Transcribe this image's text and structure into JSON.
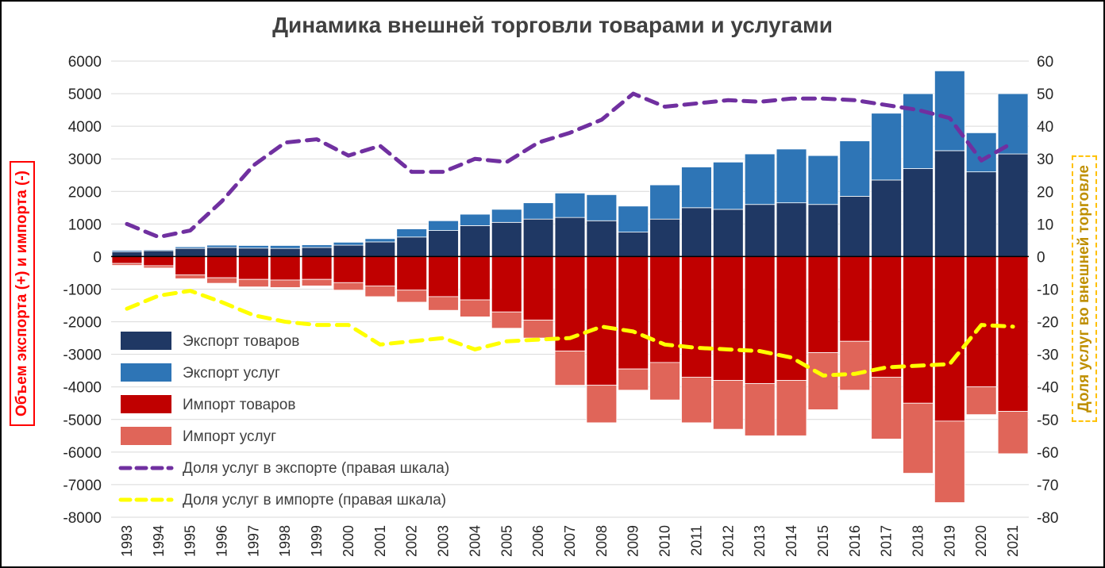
{
  "chart_data": {
    "type": "bar",
    "title": "Динамика внешней торговли товарами и услугами",
    "grid": true,
    "legend_position": "inside-left",
    "left_axis": {
      "label": "Объем экспорта (+) и импорта (-)",
      "min": -8000,
      "max": 6000,
      "step": 1000
    },
    "right_axis": {
      "label": "Доля услуг во внешней торговле",
      "min": -80,
      "max": 60,
      "step": 10
    },
    "categories": [
      "1993",
      "1994",
      "1995",
      "1996",
      "1997",
      "1998",
      "1999",
      "2000",
      "2001",
      "2002",
      "2003",
      "2004",
      "2005",
      "2006",
      "2007",
      "2008",
      "2009",
      "2010",
      "2011",
      "2012",
      "2013",
      "2014",
      "2015",
      "2016",
      "2017",
      "2018",
      "2019",
      "2020",
      "2021"
    ],
    "series": [
      {
        "name": "Экспорт товаров",
        "kind": "bar",
        "stack": "export",
        "axis": "left",
        "color": "#1F3864",
        "values": [
          150,
          180,
          250,
          280,
          260,
          250,
          280,
          350,
          450,
          600,
          800,
          950,
          1050,
          1150,
          1200,
          1100,
          750,
          1150,
          1500,
          1450,
          1600,
          1650,
          1600,
          1850,
          2350,
          2700,
          3250,
          2600,
          3150
        ]
      },
      {
        "name": "Экспорт услуг",
        "kind": "bar",
        "stack": "export",
        "axis": "left",
        "color": "#2E75B6",
        "values": [
          40,
          30,
          50,
          70,
          80,
          90,
          80,
          90,
          100,
          250,
          300,
          350,
          400,
          500,
          750,
          800,
          800,
          1050,
          1250,
          1450,
          1550,
          1650,
          1500,
          1700,
          2050,
          2300,
          2450,
          1200,
          1850
        ]
      },
      {
        "name": "Импорт товаров",
        "kind": "bar",
        "stack": "import",
        "axis": "left",
        "color": "#C00000",
        "values": [
          -210,
          -280,
          -560,
          -650,
          -700,
          -720,
          -700,
          -800,
          -900,
          -1030,
          -1230,
          -1330,
          -1700,
          -1950,
          -2900,
          -3950,
          -3450,
          -3250,
          -3700,
          -3800,
          -3900,
          -3800,
          -2950,
          -2600,
          -3700,
          -4500,
          -5050,
          -4000,
          -4750
        ]
      },
      {
        "name": "Импорт услуг",
        "kind": "bar",
        "stack": "import",
        "axis": "left",
        "color": "#E06559",
        "values": [
          -60,
          -70,
          -120,
          -170,
          -230,
          -230,
          -200,
          -230,
          -330,
          -370,
          -420,
          -520,
          -500,
          -550,
          -1050,
          -1150,
          -650,
          -1150,
          -1400,
          -1500,
          -1600,
          -1700,
          -1750,
          -1500,
          -1900,
          -2150,
          -2500,
          -850,
          -1300
        ]
      },
      {
        "name": "Доля услуг в экспорте (правая шкала)",
        "kind": "dashed-line",
        "axis": "right",
        "color": "#7030A0",
        "values": [
          10,
          6,
          8,
          17,
          28,
          35,
          36,
          31,
          34,
          26,
          26,
          30,
          29,
          35,
          38,
          42,
          50,
          46,
          47,
          48,
          47.5,
          48.5,
          48.5,
          48,
          46.5,
          45,
          42.5,
          29.5,
          35
        ]
      },
      {
        "name": "Доля услуг в импорте (правая шкала)",
        "kind": "dashed-line",
        "axis": "right",
        "color": "#FFFF00",
        "values": [
          -16,
          -12,
          -10.5,
          -14,
          -18,
          -20,
          -21,
          -21,
          -27,
          -26,
          -25,
          -28.5,
          -26,
          -25.5,
          -25,
          -21.5,
          -23,
          -27,
          -28,
          -28.5,
          -29,
          -31,
          -36.5,
          -36,
          -34,
          -33.5,
          -33,
          -21,
          -21.5
        ]
      }
    ]
  }
}
